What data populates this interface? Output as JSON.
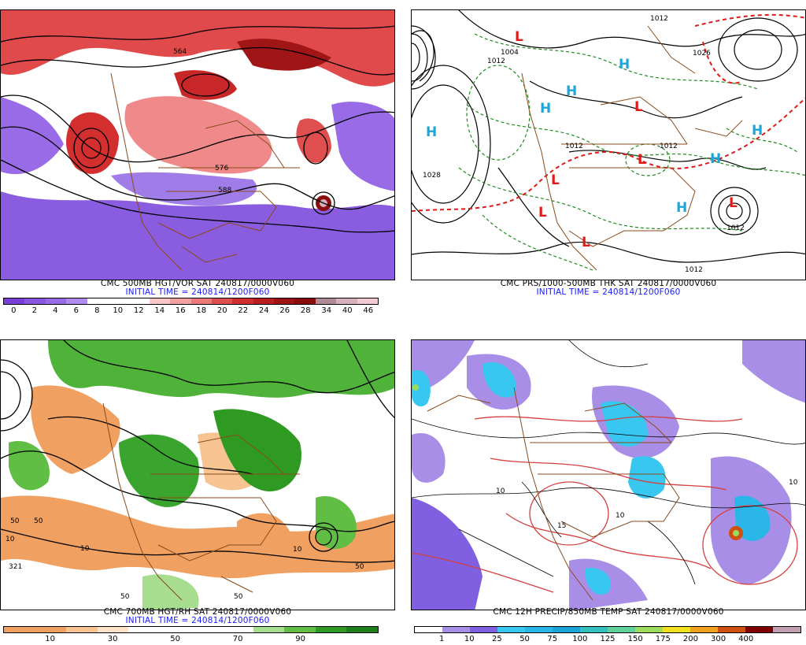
{
  "panels": [
    {
      "title": "CMC 500MB HGT/VOR SAT 240817/0000V060",
      "init": "INITIAL TIME = 240814/1200F060",
      "colorbar": {
        "colors": [
          "#7a3fd8",
          "#8a55e0",
          "#9a6be6",
          "#b08cf0",
          "#ffffff",
          "#ffffff",
          "#ffffff",
          "#f9c7c7",
          "#f3a0a0",
          "#ec7878",
          "#e04f4f",
          "#cf2f2f",
          "#b81e1e",
          "#9e1313",
          "#8a0d0d",
          "#b08a95",
          "#d6b0bb",
          "#f2c9d2"
        ],
        "labels": [
          "0",
          "2",
          "4",
          "6",
          "8",
          "10",
          "12",
          "14",
          "16",
          "18",
          "20",
          "22",
          "24",
          "26",
          "28",
          "34",
          "40",
          "46"
        ]
      },
      "map_labels": [
        "564",
        "576",
        "588"
      ]
    },
    {
      "title": "CMC PRS/1000-500MB THK SAT 240817/0000V060",
      "init": "INITIAL TIME = 240814/1200F060",
      "map_labels": [
        "1012",
        "1004",
        "1012",
        "1028",
        "1012",
        "1012",
        "1012",
        "1012",
        "1026"
      ],
      "centers": [
        {
          "letter": "H",
          "color": "#1fa6d8"
        },
        {
          "letter": "H",
          "color": "#1fa6d8"
        },
        {
          "letter": "H",
          "color": "#1fa6d8"
        },
        {
          "letter": "H",
          "color": "#1fa6d8"
        },
        {
          "letter": "H",
          "color": "#1fa6d8"
        },
        {
          "letter": "H",
          "color": "#1fa6d8"
        },
        {
          "letter": "H",
          "color": "#1fa6d8"
        },
        {
          "letter": "L",
          "color": "#e01a1a"
        },
        {
          "letter": "L",
          "color": "#e01a1a"
        },
        {
          "letter": "L",
          "color": "#e01a1a"
        },
        {
          "letter": "L",
          "color": "#e01a1a"
        },
        {
          "letter": "L",
          "color": "#e01a1a"
        },
        {
          "letter": "L",
          "color": "#e01a1a"
        },
        {
          "letter": "L",
          "color": "#e01a1a"
        }
      ]
    },
    {
      "title": "CMC 700MB HGT/RH SAT 240817/0000V060",
      "init": "INITIAL TIME = 240814/1200F060",
      "colorbar": {
        "colors": [
          "#f0a060",
          "#f0a060",
          "#f6c391",
          "#fbe2c8",
          "#ffffff",
          "#ffffff",
          "#ffffff",
          "#ffffff",
          "#a6dd8e",
          "#60be45",
          "#2e9a22",
          "#1f7f1a"
        ],
        "labels": [
          "10",
          "30",
          "50",
          "70",
          "90"
        ]
      },
      "map_labels": [
        "50",
        "10",
        "50",
        "321",
        "50",
        "10",
        "50",
        "50",
        "10"
      ]
    },
    {
      "title": "CMC 12H PRECIP/850MB TEMP SAT 240817/0000V060",
      "colorbar": {
        "colors": [
          "#ffffff",
          "#a98ee8",
          "#8060e0",
          "#37c7f0",
          "#2bb6e8",
          "#1aa5d6",
          "#35c0c0",
          "#61d19b",
          "#9bdc5d",
          "#f0e020",
          "#f2a020",
          "#d05010",
          "#800000",
          "#c0a0b0"
        ],
        "labels": [
          "1",
          "10",
          "25",
          "50",
          "75",
          "100",
          "125",
          "150",
          "175",
          "200",
          "300",
          "400"
        ]
      },
      "map_labels": [
        "10",
        "15",
        "10",
        "10"
      ]
    }
  ]
}
